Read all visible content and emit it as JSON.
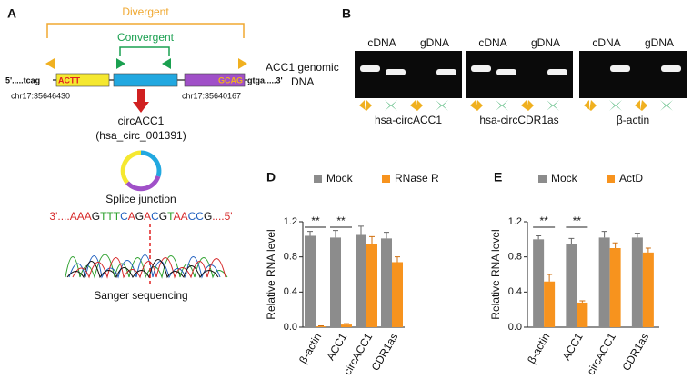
{
  "panel_a": {
    "label": "A",
    "divergent": "Divergent",
    "convergent": "Convergent",
    "left_flank": "5'.....tcag",
    "left_exon_end": "ACTT",
    "right_exon_end": "GCAG",
    "right_flank": "gtga.....3'",
    "dna_label_line1": "ACC1 genomic",
    "dna_label_line2": "DNA",
    "left_coord": "chr17:35646430",
    "right_coord": "chr17:35640167",
    "circ_name": "circACC1",
    "circ_id": "(hsa_circ_001391)",
    "junction": "Splice junction",
    "sequence": [
      {
        "text": "3'....AAA",
        "color": "#d62728"
      },
      {
        "text": "G",
        "color": "#111"
      },
      {
        "text": "TTT",
        "color": "#2ca02c"
      },
      {
        "text": "C",
        "color": "#1f5fbf"
      },
      {
        "text": "A",
        "color": "#d62728"
      },
      {
        "text": "G",
        "color": "#111"
      },
      {
        "text": "A",
        "color": "#d62728"
      },
      {
        "text": "C",
        "color": "#1f5fbf"
      },
      {
        "text": "G",
        "color": "#111"
      },
      {
        "text": "T",
        "color": "#2ca02c"
      },
      {
        "text": "AA",
        "color": "#d62728"
      },
      {
        "text": "CC",
        "color": "#1f5fbf"
      },
      {
        "text": "G",
        "color": "#111"
      },
      {
        "text": "....5'",
        "color": "#d62728"
      }
    ],
    "sanger": "Sanger sequencing"
  },
  "panel_b": {
    "label": "B",
    "lanes": [
      "cDNA",
      "gDNA",
      "cDNA",
      "gDNA",
      "cDNA",
      "gDNA"
    ],
    "genes": [
      "hsa-circACC1",
      "hsa-circCDR1as",
      "β-actin"
    ]
  },
  "chart_data": [
    {
      "type": "bar",
      "panel": "D",
      "ylabel": "Relative RNA level",
      "categories": [
        "β-actin",
        "ACC1",
        "circACC1",
        "CDR1as"
      ],
      "series": [
        {
          "name": "Mock",
          "color": "#8c8c8c",
          "values": [
            1.04,
            1.02,
            1.05,
            1.01
          ],
          "errors": [
            0.05,
            0.08,
            0.1,
            0.07
          ]
        },
        {
          "name": "RNase R",
          "color": "#f7931e",
          "values": [
            0.01,
            0.03,
            0.95,
            0.74
          ],
          "errors": [
            0.005,
            0.01,
            0.08,
            0.06
          ]
        }
      ],
      "ylim": [
        0,
        1.2
      ],
      "yticks": [
        {
          "value": 0,
          "label": "0.0"
        },
        0.4,
        0.8,
        1.2
      ],
      "annotations": [
        {
          "text": "**",
          "category": "β-actin"
        },
        {
          "text": "**",
          "category": "ACC1"
        }
      ]
    },
    {
      "type": "bar",
      "panel": "E",
      "ylabel": "Relative RNA level",
      "categories": [
        "β-actin",
        "ACC1",
        "circACC1",
        "CDR1as"
      ],
      "series": [
        {
          "name": "Mock",
          "color": "#8c8c8c",
          "values": [
            1.0,
            0.95,
            1.02,
            1.02
          ],
          "errors": [
            0.04,
            0.06,
            0.07,
            0.05
          ]
        },
        {
          "name": "ActD",
          "color": "#f7931e",
          "values": [
            0.52,
            0.28,
            0.9,
            0.85
          ],
          "errors": [
            0.08,
            0.02,
            0.06,
            0.05
          ]
        }
      ],
      "ylim": [
        0,
        1.2
      ],
      "yticks": [
        {
          "value": 0,
          "label": "0.0"
        },
        0.4,
        0.8,
        1.2
      ],
      "annotations": [
        {
          "text": "**",
          "category": "β-actin"
        },
        {
          "text": "**",
          "category": "ACC1"
        }
      ]
    }
  ]
}
